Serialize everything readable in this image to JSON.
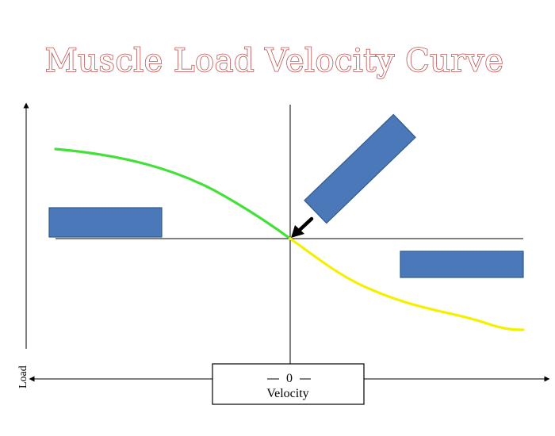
{
  "title": "Muscle Load Velocity Curve",
  "y_axis_label": "Load",
  "zero_label": "0",
  "x_axis_label": "Velocity",
  "colors": {
    "title_outline": "#c0504d",
    "concentric_curve": "#44e03a",
    "eccentric_curve": "#f5f000",
    "label_box_fill": "#4a78b8",
    "label_box_stroke": "#2f5a8e",
    "axis": "#000000"
  },
  "label_boxes": [
    {
      "name": "left-label-box",
      "text": ""
    },
    {
      "name": "right-label-box",
      "text": ""
    },
    {
      "name": "top-right-label-box",
      "text": ""
    }
  ],
  "pointer_arrow": {
    "icon": "arrow-down-left-icon"
  }
}
